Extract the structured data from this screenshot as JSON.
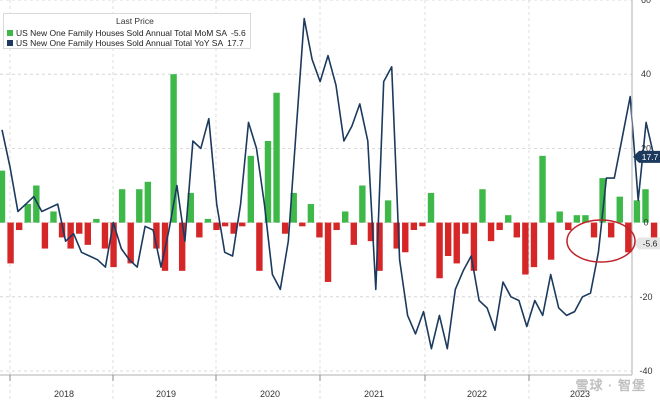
{
  "legend": {
    "title": "Last Price",
    "entries": [
      {
        "label": "US New One Family Houses Sold Annual Total MoM SA",
        "value": "-5.6",
        "color": "#3eb849"
      },
      {
        "label": "US New One Family Houses Sold Annual Total YoY SA",
        "value": "17.7",
        "color": "#1c3a5e"
      }
    ]
  },
  "watermark": "雪球 · 智堡",
  "colors": {
    "bar_positive": "#3eb849",
    "bar_negative": "#d62728",
    "line": "#1c3a5e",
    "highlight": "#c0232b"
  },
  "chart_data": {
    "type": "bar+line",
    "x_axis": {
      "labels": [
        "2018",
        "2019",
        "2020",
        "2021",
        "2022",
        "2023"
      ],
      "range": [
        "2017-09",
        "2023-10"
      ]
    },
    "y_axis": {
      "position": "right",
      "range": [
        -40,
        60
      ],
      "ticks": [
        -40,
        -20,
        0,
        20,
        40,
        60
      ]
    },
    "current_value_labels": [
      {
        "series": "YoY",
        "value": "17.7"
      },
      {
        "series": "MoM",
        "value": "-5.6"
      }
    ],
    "series": [
      {
        "name": "US New One Family Houses Sold Annual Total MoM SA",
        "kind": "bar",
        "values": [
          14,
          -11,
          -2,
          5,
          10,
          -7,
          3,
          -4,
          -7,
          -3,
          -6,
          1,
          -7,
          -12,
          9,
          -11,
          9,
          11,
          -7,
          -13,
          40,
          -13,
          8,
          -4,
          1,
          -2,
          -1,
          -3,
          -1,
          18,
          -13,
          22,
          35,
          -3,
          8,
          -1,
          5,
          -4,
          -16,
          -2,
          3,
          -6,
          10,
          -5,
          -13,
          6,
          -7,
          -8,
          -2,
          -1,
          8,
          -15,
          -9,
          -11,
          -3,
          -13,
          9,
          -5,
          -2,
          2,
          -4,
          -14,
          -12,
          18,
          -10,
          3,
          -2,
          2,
          2,
          -4,
          12,
          -4,
          7,
          -8,
          6,
          9,
          -5.6
        ],
        "highlight_last_n": 3
      },
      {
        "name": "US New One Family Houses Sold Annual Total YoY SA",
        "kind": "line",
        "values": [
          25,
          15,
          3,
          5,
          7,
          3,
          4,
          5,
          -5,
          -3,
          -8,
          -9,
          -10,
          -12,
          0,
          -7,
          -10,
          -12,
          -1,
          -2,
          -12,
          -2,
          10,
          -5,
          22,
          20,
          28,
          5,
          -8,
          -9,
          5,
          27,
          20,
          5,
          -14,
          -18,
          -5,
          25,
          55,
          44,
          38,
          45,
          37,
          22,
          26,
          32,
          22,
          -18,
          38,
          42,
          -10,
          -25,
          -30,
          -24,
          -34,
          -25,
          -34,
          -18,
          -13,
          -9,
          -21,
          -23,
          -29,
          -16,
          -20,
          -21,
          -28,
          -21,
          -25,
          -14,
          -23,
          -25,
          -24,
          -20,
          -19,
          -8,
          12,
          12,
          23,
          34,
          6,
          27,
          17.7
        ]
      }
    ]
  }
}
